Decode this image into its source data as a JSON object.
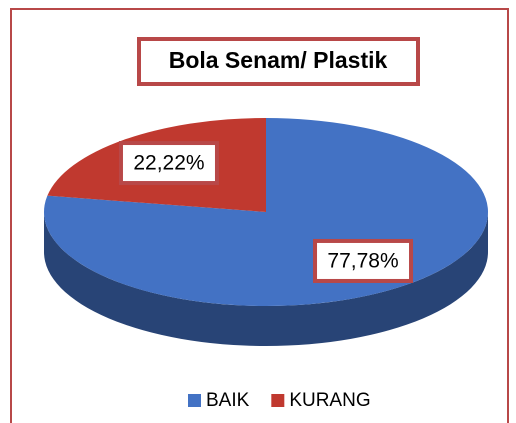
{
  "chart_data": {
    "type": "pie",
    "title": "Bola Senam/ Plastik",
    "categories": [
      "BAIK",
      "KURANG"
    ],
    "values": [
      77.78,
      22.22
    ],
    "value_labels": [
      "77,78%",
      "22,22%"
    ],
    "colors": [
      "#4372c4",
      "#c0392f"
    ],
    "legend": "bottom"
  }
}
